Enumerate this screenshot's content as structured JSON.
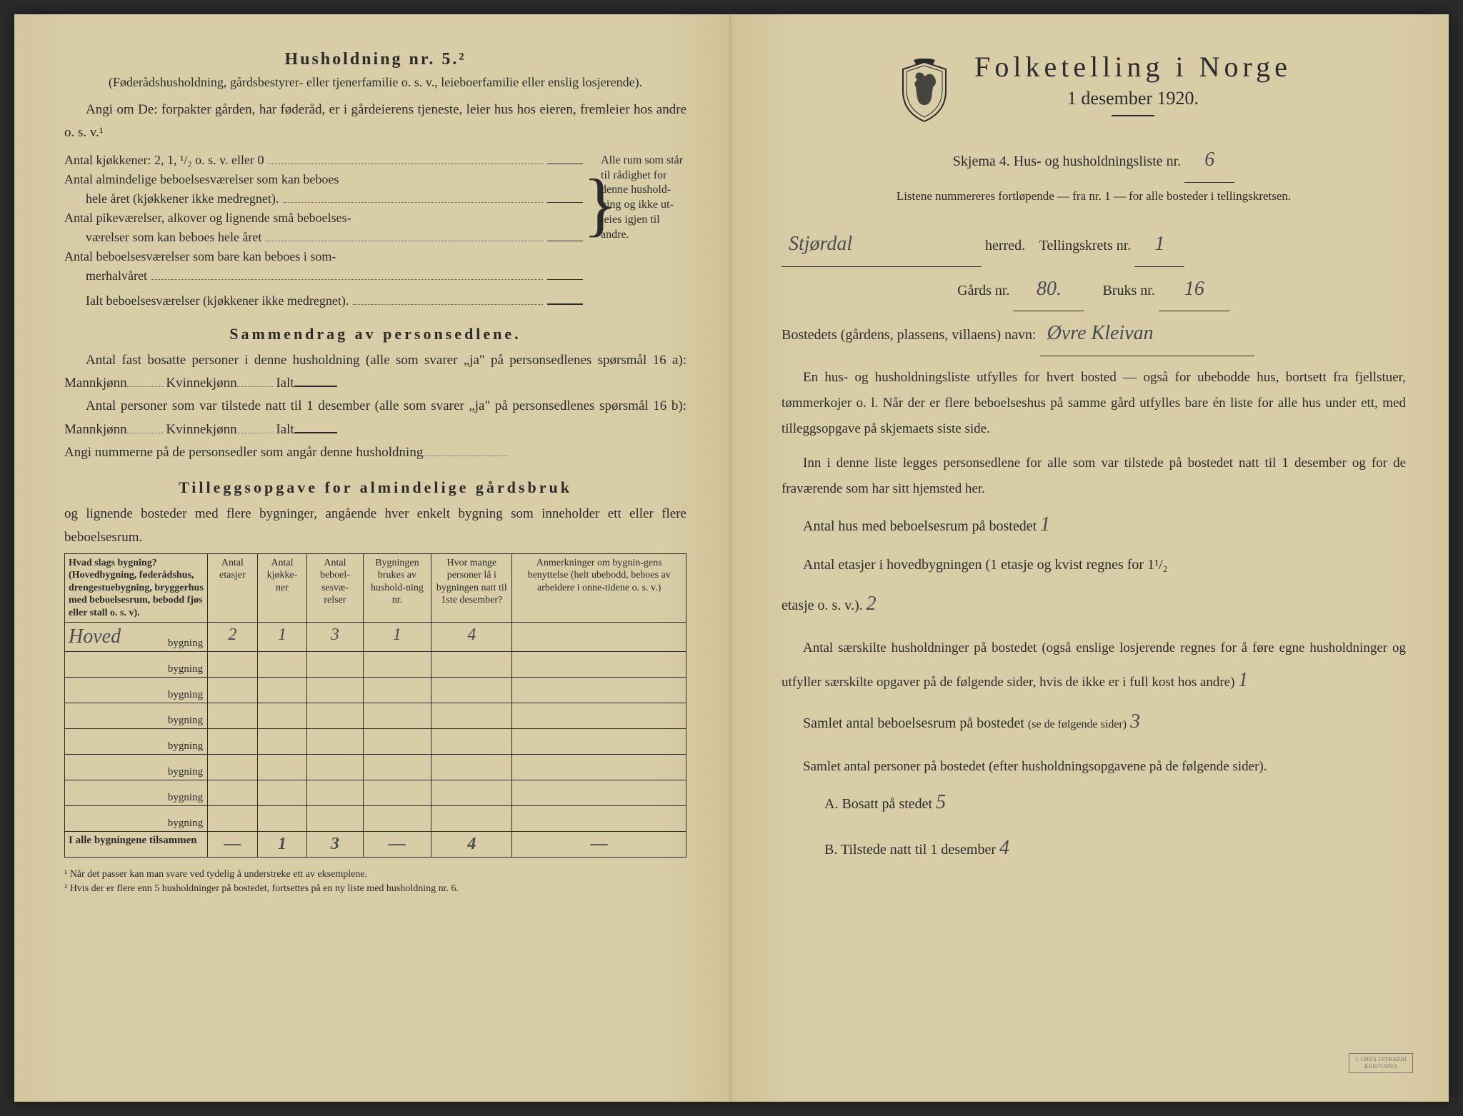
{
  "left": {
    "heading": "Husholdning nr. 5.²",
    "intro1": "(Føderådshusholdning, gårdsbestyrer- eller tjenerfamilie o. s. v., leieboerfamilie eller enslig losjerende).",
    "intro2": "Angi om De: forpakter gården, har føderåd, er i gårdeierens tjeneste, leier hus hos eieren, fremleier hos andre o. s. v.¹",
    "list1": "Antal kjøkkener: 2, 1, ¹/₂ o. s. v. eller 0",
    "list2a": "Antal almindelige beboelsesværelser som kan beboes",
    "list2b": "hele året (kjøkkener ikke medregnet).",
    "list3a": "Antal pikeværelser, alkover og lignende små beboelses-",
    "list3b": "værelser som kan beboes hele året",
    "list4a": "Antal beboelsesværelser som bare kan beboes i som-",
    "list4b": "merhalvåret",
    "list5": "Ialt beboelsesværelser (kjøkkener ikke medregnet).",
    "brace_text": "Alle rum som står til rådighet for denne hushold-ning og ikke ut-leies igjen til andre.",
    "sec2_title": "Sammendrag av personsedlene.",
    "sec2_l1": "Antal fast bosatte personer i denne husholdning (alle som svarer „ja\" på personsedlenes spørsmål 16 a): Mannkjønn",
    "sec2_l1b": "Kvinnekjønn",
    "sec2_l1c": "Ialt",
    "sec2_l2": "Antal personer som var tilstede natt til 1 desember (alle som svarer „ja\" på personsedlenes spørsmål 16 b): Mannkjønn",
    "sec2_l3": "Angi nummerne på de personsedler som angår denne husholdning",
    "sec3_title": "Tilleggsopgave for almindelige gårdsbruk",
    "sec3_sub": "og lignende bosteder med flere bygninger, angående hver enkelt bygning som inneholder ett eller flere beboelsesrum.",
    "table": {
      "headers": [
        "Hvad slags bygning?\n(Hovedbygning, føderådshus, drengestuebygning, bryggerhus med beboelsesrum, bebodd fjøs eller stall o. s. v).",
        "Antal etasjer",
        "Antal kjøkke-ner",
        "Antal beboel-sesvæ-relser",
        "Bygningen brukes av hushold-ning nr.",
        "Hvor mange personer lå i bygningen natt til 1ste desember?",
        "Anmerkninger om bygnin-gens benyttelse (helt ubebodd, beboes av arbeidere i onne-tidene o. s. v.)"
      ],
      "rows": [
        {
          "name": "Hoved",
          "vals": [
            "2",
            "1",
            "3",
            "1",
            "4",
            ""
          ]
        },
        {
          "name": "",
          "vals": [
            "",
            "",
            "",
            "",
            "",
            ""
          ]
        },
        {
          "name": "",
          "vals": [
            "",
            "",
            "",
            "",
            "",
            ""
          ]
        },
        {
          "name": "",
          "vals": [
            "",
            "",
            "",
            "",
            "",
            ""
          ]
        },
        {
          "name": "",
          "vals": [
            "",
            "",
            "",
            "",
            "",
            ""
          ]
        },
        {
          "name": "",
          "vals": [
            "",
            "",
            "",
            "",
            "",
            ""
          ]
        },
        {
          "name": "",
          "vals": [
            "",
            "",
            "",
            "",
            "",
            ""
          ]
        },
        {
          "name": "",
          "vals": [
            "",
            "",
            "",
            "",
            "",
            ""
          ]
        }
      ],
      "row_suffix": "bygning",
      "total_label": "I alle bygningene tilsammen",
      "total_vals": [
        "—",
        "1",
        "3",
        "—",
        "4",
        "—"
      ]
    },
    "footnote1": "¹ Når det passer kan man svare ved tydelig å understreke ett av eksemplene.",
    "footnote2": "² Hvis der er flere enn 5 husholdninger på bostedet, fortsettes på en ny liste med husholdning nr. 6."
  },
  "right": {
    "title": "Folketelling i Norge",
    "subtitle": "1 desember 1920.",
    "schema_line": "Skjema 4.  Hus- og husholdningsliste nr.",
    "schema_val": "6",
    "listene": "Listene nummereres fortløpende — fra nr. 1 — for alle bosteder i tellingskretsen.",
    "herred_val": "Stjørdal",
    "herred_label": "herred.",
    "krets_label": "Tellingskrets nr.",
    "krets_val": "1",
    "gards_label": "Gårds nr.",
    "gards_val": "80.",
    "bruks_label": "Bruks nr.",
    "bruks_val": "16",
    "bosted_label": "Bostedets (gårdens, plassens, villaens) navn:",
    "bosted_val": "Øvre Kleivan",
    "para1": "En hus- og husholdningsliste utfylles for hvert bosted — også for ubebodde hus, bortsett fra fjellstuer, tømmerkojer o. l.  Når der er flere beboelseshus på samme gård utfylles bare én liste for alle hus under ett, med tilleggsopgave på skjemaets siste side.",
    "para2": "Inn i denne liste legges personsedlene for alle som var tilstede på bostedet natt til 1 desember og for de fraværende som har sitt hjemsted her.",
    "f1_label": "Antal hus med beboelsesrum på bostedet",
    "f1_val": "1",
    "f2_label1": "Antal etasjer i hovedbygningen (1 etasje og kvist regnes for 1¹/₂",
    "f2_label2": "etasje o. s. v.).",
    "f2_val": "2",
    "f3_label": "Antal særskilte husholdninger på bostedet (også enslige losjerende regnes for å føre egne husholdninger og utfyller særskilte opgaver på de følgende sider, hvis de ikke er i full kost hos andre)",
    "f3_val": "1",
    "f4_label": "Samlet antal beboelsesrum på bostedet",
    "f4_small": "(se de følgende sider)",
    "f4_val": "3",
    "f5_label": "Samlet antal personer på bostedet (efter husholdningsopgavene på de følgende sider).",
    "fA_label": "A.  Bosatt på stedet",
    "fA_val": "5",
    "fB_label": "B.  Tilstede natt til 1 desember",
    "fB_val": "4"
  },
  "colors": {
    "paper": "#d9cda8",
    "ink": "#2b2b2b",
    "handwriting": "#4a4a50"
  }
}
